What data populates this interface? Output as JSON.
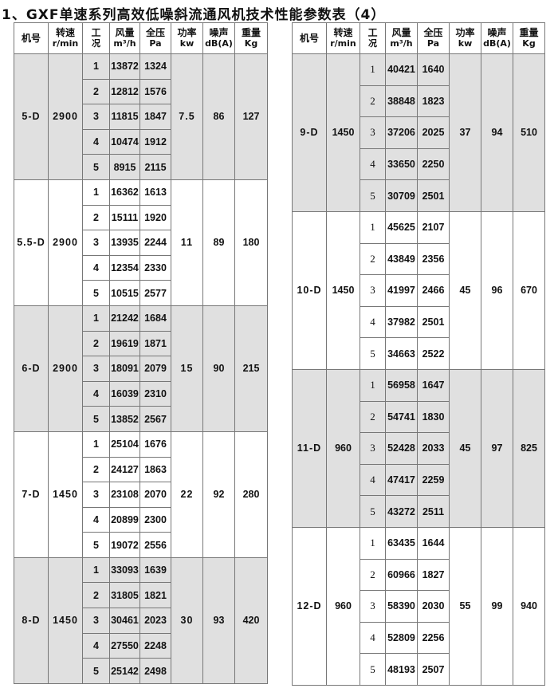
{
  "title": "1、GXF单速系列高效低噪斜流通风机技术性能参数表（4）",
  "headers": [
    [
      "机号",
      ""
    ],
    [
      "转速",
      "r/min"
    ],
    [
      "工",
      "况"
    ],
    [
      "风量",
      "m³/h"
    ],
    [
      "全压",
      "Pa"
    ],
    [
      "功率",
      "kw"
    ],
    [
      "噪声",
      "dB(A)"
    ],
    [
      "重量",
      "Kg"
    ]
  ],
  "shade_color": "#e0e0e0",
  "tables": [
    {
      "groups": [
        {
          "model": "5-D",
          "speed": "2900",
          "power": "7.5",
          "noise": "86",
          "weight": "127",
          "shaded": true,
          "rows": [
            {
              "cond": "1",
              "flow": "13872",
              "pressure": "1324"
            },
            {
              "cond": "2",
              "flow": "12812",
              "pressure": "1576"
            },
            {
              "cond": "3",
              "flow": "11815",
              "pressure": "1847"
            },
            {
              "cond": "4",
              "flow": "10474",
              "pressure": "1912"
            },
            {
              "cond": "5",
              "flow": "8915",
              "pressure": "2115"
            }
          ]
        },
        {
          "model": "5.5-D",
          "speed": "2900",
          "power": "11",
          "noise": "89",
          "weight": "180",
          "shaded": false,
          "rows": [
            {
              "cond": "1",
              "flow": "16362",
              "pressure": "1613"
            },
            {
              "cond": "2",
              "flow": "15111",
              "pressure": "1920"
            },
            {
              "cond": "3",
              "flow": "13935",
              "pressure": "2244"
            },
            {
              "cond": "4",
              "flow": "12354",
              "pressure": "2330"
            },
            {
              "cond": "5",
              "flow": "10515",
              "pressure": "2577"
            }
          ]
        },
        {
          "model": "6-D",
          "speed": "2900",
          "power": "15",
          "noise": "90",
          "weight": "215",
          "shaded": true,
          "rows": [
            {
              "cond": "1",
              "flow": "21242",
              "pressure": "1684"
            },
            {
              "cond": "2",
              "flow": "19619",
              "pressure": "1871"
            },
            {
              "cond": "3",
              "flow": "18091",
              "pressure": "2079"
            },
            {
              "cond": "4",
              "flow": "16039",
              "pressure": "2310"
            },
            {
              "cond": "5",
              "flow": "13852",
              "pressure": "2567"
            }
          ]
        },
        {
          "model": "7-D",
          "speed": "1450",
          "power": "22",
          "noise": "92",
          "weight": "280",
          "shaded": false,
          "rows": [
            {
              "cond": "1",
              "flow": "25104",
              "pressure": "1676"
            },
            {
              "cond": "2",
              "flow": "24127",
              "pressure": "1863"
            },
            {
              "cond": "3",
              "flow": "23108",
              "pressure": "2070"
            },
            {
              "cond": "4",
              "flow": "20899",
              "pressure": "2300"
            },
            {
              "cond": "5",
              "flow": "19072",
              "pressure": "2556"
            }
          ]
        },
        {
          "model": "8-D",
          "speed": "1450",
          "power": "30",
          "noise": "93",
          "weight": "420",
          "shaded": true,
          "rows": [
            {
              "cond": "1",
              "flow": "33093",
              "pressure": "1639"
            },
            {
              "cond": "2",
              "flow": "31805",
              "pressure": "1821"
            },
            {
              "cond": "3",
              "flow": "30461",
              "pressure": "2023"
            },
            {
              "cond": "4",
              "flow": "27550",
              "pressure": "2248"
            },
            {
              "cond": "5",
              "flow": "25142",
              "pressure": "2498"
            }
          ]
        }
      ]
    },
    {
      "groups": [
        {
          "model": "9-D",
          "speed": "1450",
          "power": "37",
          "noise": "94",
          "weight": "510",
          "shaded": true,
          "rows": [
            {
              "cond": "1",
              "flow": "40421",
              "pressure": "1640"
            },
            {
              "cond": "2",
              "flow": "38848",
              "pressure": "1823"
            },
            {
              "cond": "3",
              "flow": "37206",
              "pressure": "2025"
            },
            {
              "cond": "4",
              "flow": "33650",
              "pressure": "2250"
            },
            {
              "cond": "5",
              "flow": "30709",
              "pressure": "2501"
            }
          ]
        },
        {
          "model": "10-D",
          "speed": "1450",
          "power": "45",
          "noise": "96",
          "weight": "670",
          "shaded": false,
          "rows": [
            {
              "cond": "1",
              "flow": "45625",
              "pressure": "2107"
            },
            {
              "cond": "2",
              "flow": "43849",
              "pressure": "2356"
            },
            {
              "cond": "3",
              "flow": "41997",
              "pressure": "2466"
            },
            {
              "cond": "4",
              "flow": "37982",
              "pressure": "2501"
            },
            {
              "cond": "5",
              "flow": "34663",
              "pressure": "2522"
            }
          ]
        },
        {
          "model": "11-D",
          "speed": "960",
          "power": "45",
          "noise": "97",
          "weight": "825",
          "shaded": true,
          "rows": [
            {
              "cond": "1",
              "flow": "56958",
              "pressure": "1647"
            },
            {
              "cond": "2",
              "flow": "54741",
              "pressure": "1830"
            },
            {
              "cond": "3",
              "flow": "52428",
              "pressure": "2033"
            },
            {
              "cond": "4",
              "flow": "47417",
              "pressure": "2259"
            },
            {
              "cond": "5",
              "flow": "43272",
              "pressure": "2511"
            }
          ]
        },
        {
          "model": "12-D",
          "speed": "960",
          "power": "55",
          "noise": "99",
          "weight": "940",
          "shaded": false,
          "rows": [
            {
              "cond": "1",
              "flow": "63435",
              "pressure": "1644"
            },
            {
              "cond": "2",
              "flow": "60966",
              "pressure": "1827"
            },
            {
              "cond": "3",
              "flow": "58390",
              "pressure": "2030"
            },
            {
              "cond": "4",
              "flow": "52809",
              "pressure": "2256"
            },
            {
              "cond": "5",
              "flow": "48193",
              "pressure": "2507"
            }
          ]
        }
      ]
    }
  ]
}
